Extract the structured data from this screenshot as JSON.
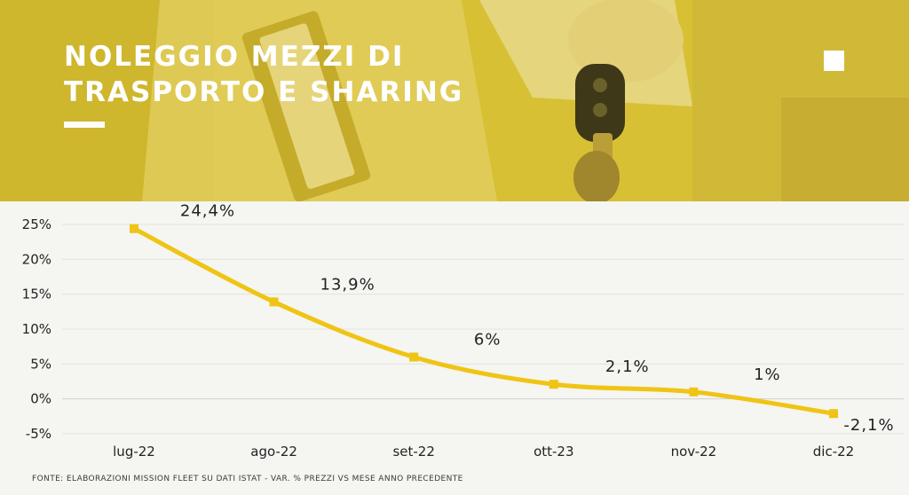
{
  "header": {
    "title_line1": "NOLEGGIO MEZZI DI",
    "title_line2": "TRASPORTO E SHARING"
  },
  "colors": {
    "accent": "#efc414",
    "header_overlay": "#d8c034",
    "background": "#f5f5f1"
  },
  "footer": {
    "source": "FONTE: ELABORAZIONI MISSION FLEET SU DATI ISTAT - VAR. % PREZZI VS MESE ANNO PRECEDENTE"
  },
  "chart_data": {
    "type": "line",
    "title": "",
    "xlabel": "",
    "ylabel": "",
    "categories": [
      "lug-22",
      "ago-22",
      "set-22",
      "ott-23",
      "nov-22",
      "dic-22"
    ],
    "values": [
      24.4,
      13.9,
      6,
      2.1,
      1,
      -2.1
    ],
    "data_labels": [
      "24,4%",
      "13,9%",
      "6%",
      "2,1%",
      "1%",
      "-2,1%"
    ],
    "yticks": [
      25,
      20,
      15,
      10,
      5,
      0,
      -5
    ],
    "ytick_labels": [
      "25%",
      "20%",
      "15%",
      "10%",
      "5%",
      "0%",
      "-5%"
    ],
    "ylim": [
      -5,
      25
    ],
    "grid": true,
    "legend": "none",
    "line_color": "#efc414"
  }
}
